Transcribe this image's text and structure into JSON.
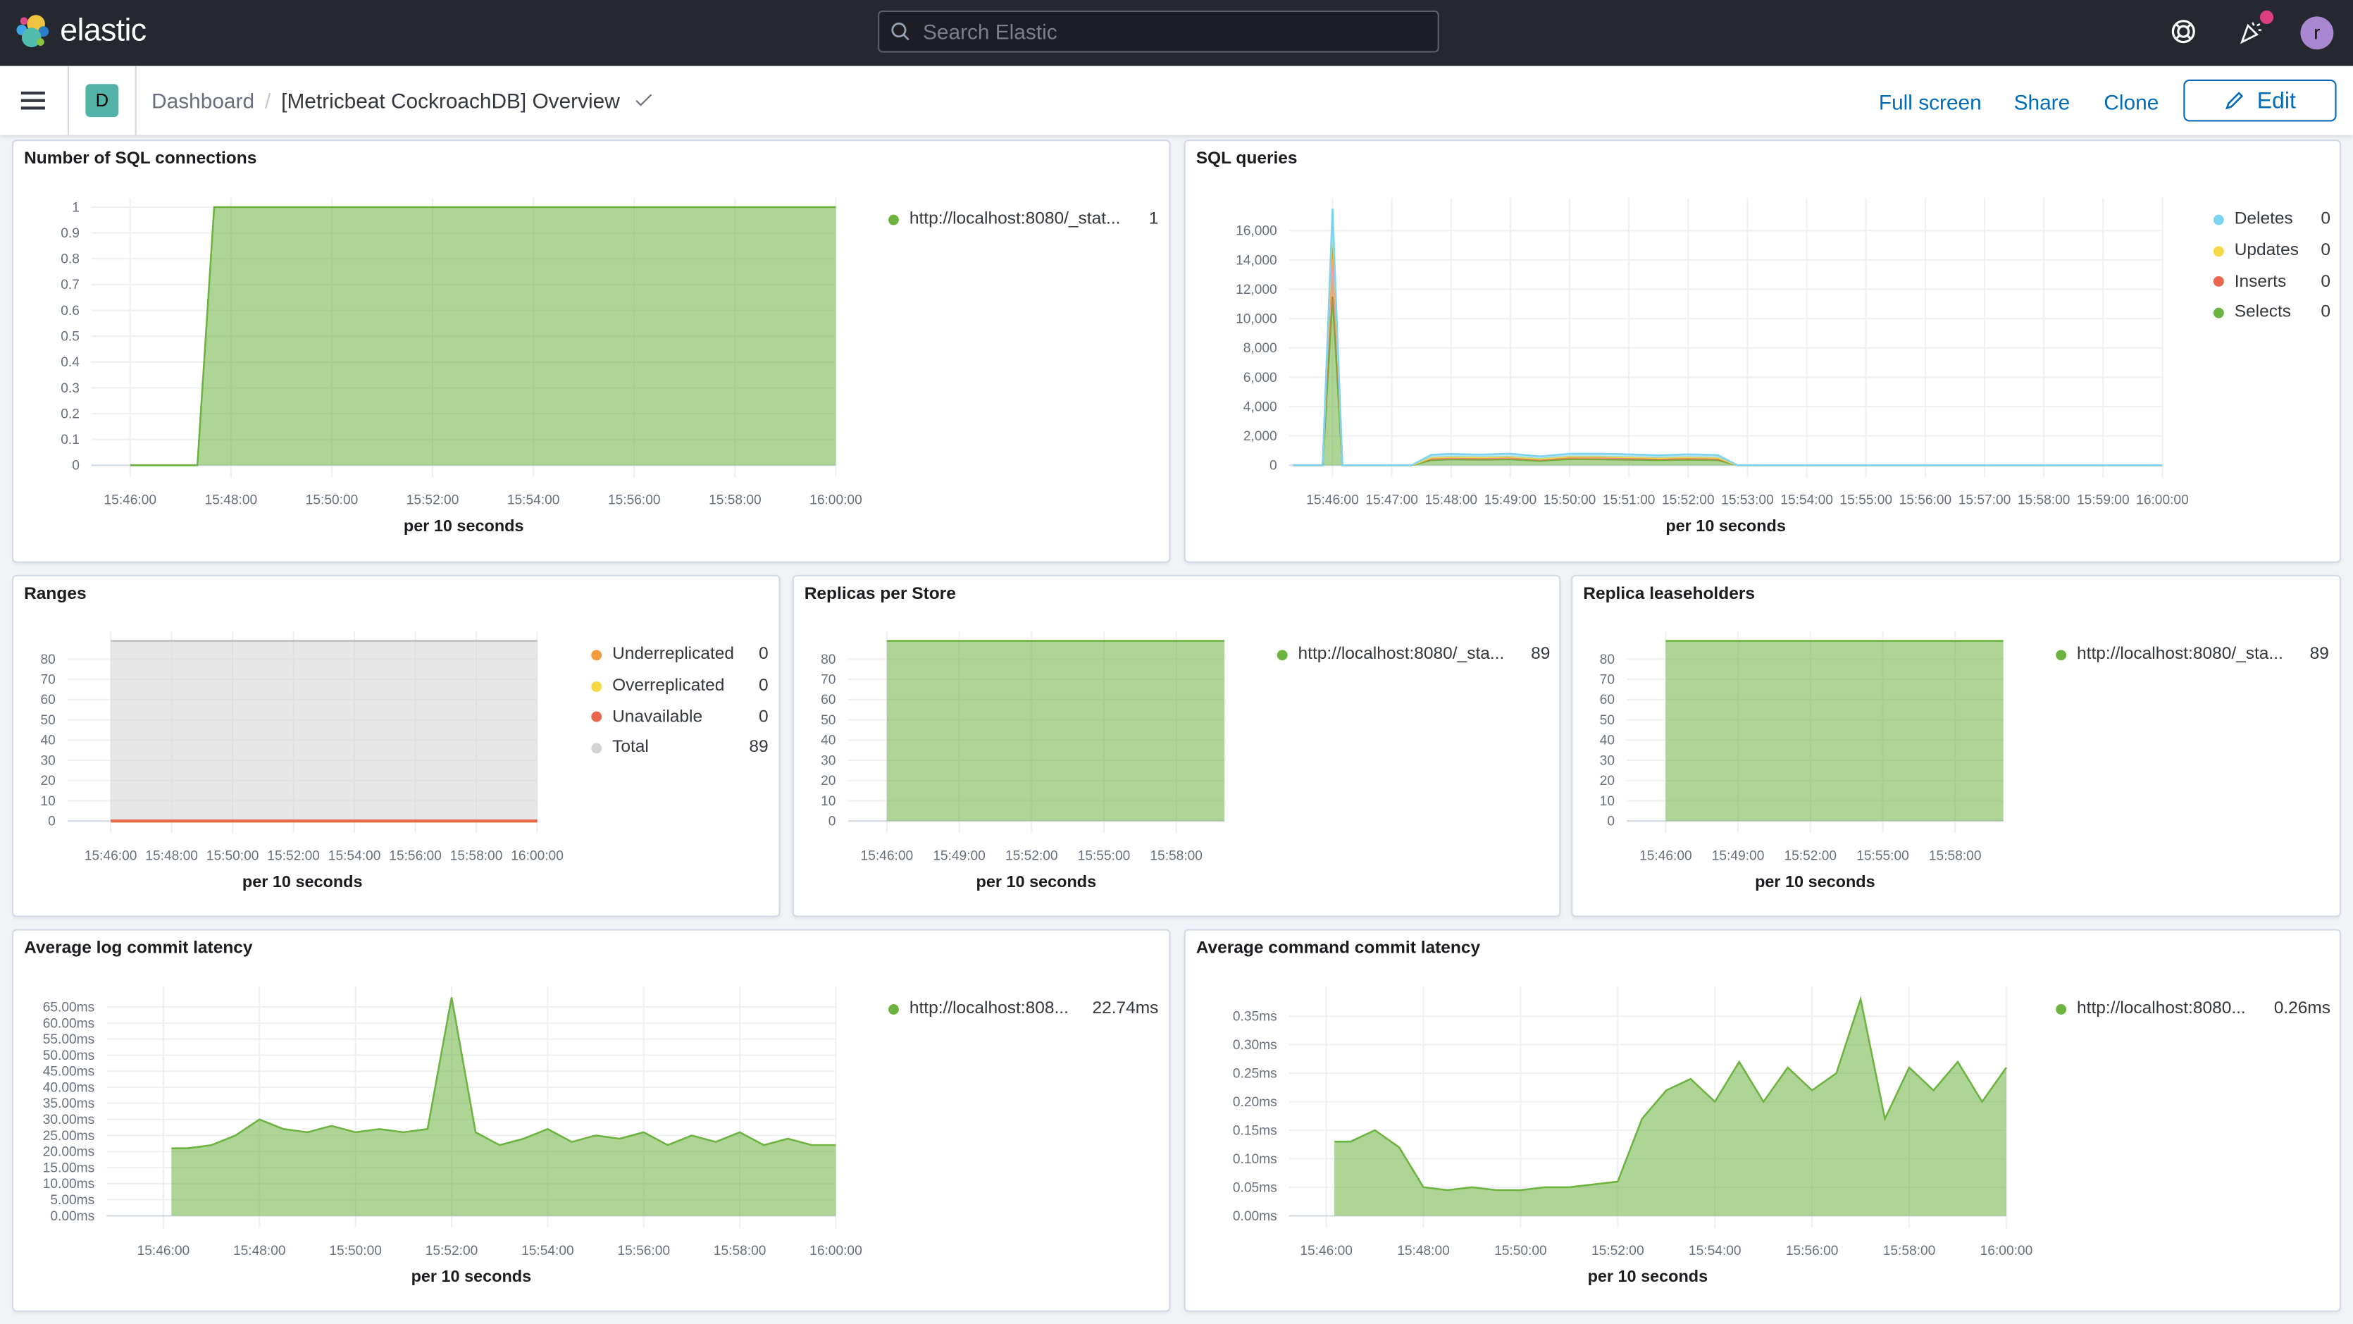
{
  "header": {
    "logo_text": "elastic",
    "search_placeholder": "Search Elastic",
    "icons": [
      "help-icon",
      "newsfeed-icon"
    ],
    "avatar_letter": "r",
    "colors": {
      "topbar": "#25282f",
      "avatar": "#a987d1",
      "notification": "#dd3f7a"
    }
  },
  "navbar": {
    "space_letter": "D",
    "breadcrumb_parent": "Dashboard",
    "breadcrumb_current": "[Metricbeat CockroachDB] Overview",
    "actions": {
      "full_screen": "Full screen",
      "share": "Share",
      "clone": "Clone",
      "edit": "Edit"
    },
    "accent": "#006bb8"
  },
  "panels": [
    {
      "title": "Number of SQL connections"
    },
    {
      "title": "SQL queries"
    },
    {
      "title": "Ranges"
    },
    {
      "title": "Replicas per Store"
    },
    {
      "title": "Replica leaseholders"
    },
    {
      "title": "Average log commit latency"
    },
    {
      "title": "Average command commit latency"
    }
  ],
  "chart_data": [
    {
      "type": "area",
      "stacked": false,
      "xlabel": "per 10 seconds",
      "xlim": [
        "15:45:14",
        "16:00:00"
      ],
      "ylim": [
        0,
        1
      ],
      "xticks": [
        "15:46:00",
        "15:48:00",
        "15:50:00",
        "15:52:00",
        "15:54:00",
        "15:56:00",
        "15:58:00",
        "16:00:00"
      ],
      "yticks": [
        0,
        0.1,
        0.2,
        0.3,
        0.4,
        0.5,
        0.6,
        0.7,
        0.8,
        0.9,
        1
      ],
      "ytick_labels": [
        "0",
        "0.1",
        "0.2",
        "0.3",
        "0.4",
        "0.5",
        "0.6",
        "0.7",
        "0.8",
        "0.9",
        "1"
      ],
      "series": [
        {
          "name": "http://localhost:8080/_stat...",
          "legend_value": "1",
          "color": "#6db33f",
          "x": [
            "15:46:00",
            "15:47:20",
            "15:47:40",
            "16:00:00"
          ],
          "values": [
            0,
            0,
            1,
            1
          ]
        }
      ]
    },
    {
      "type": "area",
      "stacked": true,
      "xlabel": "per 10 seconds",
      "xlim": [
        "15:45:16",
        "16:00:00"
      ],
      "ylim": [
        0,
        17600
      ],
      "xticks": [
        "15:46:00",
        "15:47:00",
        "15:48:00",
        "15:49:00",
        "15:50:00",
        "15:51:00",
        "15:52:00",
        "15:53:00",
        "15:54:00",
        "15:55:00",
        "15:56:00",
        "15:57:00",
        "15:58:00",
        "15:59:00",
        "16:00:00"
      ],
      "yticks": [
        0,
        2000,
        4000,
        6000,
        8000,
        10000,
        12000,
        14000,
        16000
      ],
      "ytick_labels": [
        "0",
        "2,000",
        "4,000",
        "6,000",
        "8,000",
        "10,000",
        "12,000",
        "14,000",
        "16,000"
      ],
      "x": [
        "15:45:20",
        "15:45:50",
        "15:46:00",
        "15:46:10",
        "15:47:20",
        "15:47:40",
        "15:48:00",
        "15:48:30",
        "15:49:00",
        "15:49:30",
        "15:50:00",
        "15:50:30",
        "15:51:00",
        "15:51:30",
        "15:52:00",
        "15:52:30",
        "15:52:50",
        "16:00:00"
      ],
      "legend_order": [
        3,
        2,
        1,
        0
      ],
      "series": [
        {
          "name": "Selects",
          "legend_value": "0",
          "color": "#6db33f",
          "values": [
            0,
            0,
            11500,
            0,
            0,
            350,
            400,
            380,
            400,
            300,
            420,
            400,
            380,
            350,
            380,
            350,
            0,
            0
          ]
        },
        {
          "name": "Inserts",
          "legend_value": "0",
          "color": "#e7664c",
          "values": [
            0,
            0,
            4500,
            0,
            0,
            150,
            150,
            140,
            160,
            120,
            150,
            160,
            150,
            130,
            150,
            140,
            0,
            0
          ]
        },
        {
          "name": "Updates",
          "legend_value": "0",
          "color": "#f5d843",
          "values": [
            0,
            0,
            500,
            0,
            0,
            20,
            20,
            20,
            20,
            20,
            20,
            20,
            20,
            20,
            20,
            20,
            0,
            0
          ]
        },
        {
          "name": "Deletes",
          "legend_value": "0",
          "color": "#7dd3f2",
          "values": [
            0,
            0,
            1000,
            0,
            0,
            200,
            200,
            190,
            210,
            170,
            200,
            210,
            200,
            180,
            200,
            190,
            0,
            0
          ]
        }
      ]
    },
    {
      "type": "area",
      "stacked": false,
      "xlabel": "per 10 seconds",
      "xlim": [
        "15:44:35",
        "16:00:00"
      ],
      "ylim": [
        0,
        89
      ],
      "xticks": [
        "15:46:00",
        "15:48:00",
        "15:50:00",
        "15:52:00",
        "15:54:00",
        "15:56:00",
        "15:58:00",
        "16:00:00"
      ],
      "yticks": [
        0,
        10,
        20,
        30,
        40,
        50,
        60,
        70,
        80
      ],
      "ytick_labels": [
        "0",
        "10",
        "20",
        "30",
        "40",
        "50",
        "60",
        "70",
        "80"
      ],
      "series": [
        {
          "name": "Underreplicated",
          "legend_value": "0",
          "color": "#f29a3c",
          "x": [
            "15:46:00",
            "16:00:00"
          ],
          "values": [
            0,
            0
          ]
        },
        {
          "name": "Overreplicated",
          "legend_value": "0",
          "color": "#f5d843",
          "x": [
            "15:46:00",
            "16:00:00"
          ],
          "values": [
            0,
            0
          ]
        },
        {
          "name": "Unavailable",
          "legend_value": "0",
          "color": "#e7664c",
          "x": [
            "15:46:00",
            "16:00:00"
          ],
          "values": [
            0,
            0
          ]
        },
        {
          "name": "Total",
          "legend_value": "89",
          "color": "#d3d3d3",
          "x": [
            "15:46:00",
            "16:00:00"
          ],
          "values": [
            89,
            89
          ]
        }
      ],
      "draw_order": [
        3,
        0,
        1,
        2
      ]
    },
    {
      "type": "area",
      "stacked": false,
      "xlabel": "per 10 seconds",
      "xlim": [
        "15:44:23",
        "16:00:00"
      ],
      "ylim": [
        0,
        89
      ],
      "xticks": [
        "15:46:00",
        "15:49:00",
        "15:52:00",
        "15:55:00",
        "15:58:00"
      ],
      "yticks": [
        0,
        10,
        20,
        30,
        40,
        50,
        60,
        70,
        80
      ],
      "ytick_labels": [
        "0",
        "10",
        "20",
        "30",
        "40",
        "50",
        "60",
        "70",
        "80"
      ],
      "series": [
        {
          "name": "http://localhost:8080/_sta...",
          "legend_value": "89",
          "color": "#6db33f",
          "x": [
            "15:46:00",
            "16:00:00"
          ],
          "values": [
            89,
            89
          ]
        }
      ]
    },
    {
      "type": "area",
      "stacked": false,
      "xlabel": "per 10 seconds",
      "xlim": [
        "15:44:23",
        "16:00:00"
      ],
      "ylim": [
        0,
        89
      ],
      "xticks": [
        "15:46:00",
        "15:49:00",
        "15:52:00",
        "15:55:00",
        "15:58:00"
      ],
      "yticks": [
        0,
        10,
        20,
        30,
        40,
        50,
        60,
        70,
        80
      ],
      "ytick_labels": [
        "0",
        "10",
        "20",
        "30",
        "40",
        "50",
        "60",
        "70",
        "80"
      ],
      "series": [
        {
          "name": "http://localhost:8080/_sta...",
          "legend_value": "89",
          "color": "#6db33f",
          "x": [
            "15:46:00",
            "16:00:00"
          ],
          "values": [
            89,
            89
          ]
        }
      ]
    },
    {
      "type": "area",
      "stacked": false,
      "xlabel": "per 10 seconds",
      "xlim": [
        "15:44:49",
        "16:00:00"
      ],
      "ylim": [
        0,
        68.7
      ],
      "xticks": [
        "15:46:00",
        "15:48:00",
        "15:50:00",
        "15:52:00",
        "15:54:00",
        "15:56:00",
        "15:58:00",
        "16:00:00"
      ],
      "yticks": [
        0,
        5,
        10,
        15,
        20,
        25,
        30,
        35,
        40,
        45,
        50,
        55,
        60,
        65
      ],
      "ytick_labels": [
        "0.00ms",
        "5.00ms",
        "10.00ms",
        "15.00ms",
        "20.00ms",
        "25.00ms",
        "30.00ms",
        "35.00ms",
        "40.00ms",
        "45.00ms",
        "50.00ms",
        "55.00ms",
        "60.00ms",
        "65.00ms"
      ],
      "x": [
        "15:46:10",
        "15:46:30",
        "15:47:00",
        "15:47:30",
        "15:48:00",
        "15:48:30",
        "15:49:00",
        "15:49:30",
        "15:50:00",
        "15:50:30",
        "15:51:00",
        "15:51:30",
        "15:52:00",
        "15:52:30",
        "15:53:00",
        "15:53:30",
        "15:54:00",
        "15:54:30",
        "15:55:00",
        "15:55:30",
        "15:56:00",
        "15:56:30",
        "15:57:00",
        "15:57:30",
        "15:58:00",
        "15:58:30",
        "15:59:00",
        "15:59:30",
        "16:00:00"
      ],
      "series": [
        {
          "name": "http://localhost:808...",
          "legend_value": "22.74ms",
          "color": "#6db33f",
          "values": [
            21,
            21,
            22,
            25,
            30,
            27,
            26,
            28,
            26,
            27,
            26,
            27,
            68,
            26,
            22,
            24,
            27,
            23,
            25,
            24,
            26,
            22,
            25,
            23,
            26,
            22,
            24,
            22,
            22
          ]
        }
      ]
    },
    {
      "type": "area",
      "stacked": false,
      "xlabel": "per 10 seconds",
      "xlim": [
        "15:45:14",
        "16:00:00"
      ],
      "ylim": [
        0,
        0.387
      ],
      "xticks": [
        "15:46:00",
        "15:48:00",
        "15:50:00",
        "15:52:00",
        "15:54:00",
        "15:56:00",
        "15:58:00",
        "16:00:00"
      ],
      "yticks": [
        0,
        0.05,
        0.1,
        0.15,
        0.2,
        0.25,
        0.3,
        0.35
      ],
      "ytick_labels": [
        "0.00ms",
        "0.05ms",
        "0.10ms",
        "0.15ms",
        "0.20ms",
        "0.25ms",
        "0.30ms",
        "0.35ms"
      ],
      "x": [
        "15:46:10",
        "15:46:30",
        "15:47:00",
        "15:47:30",
        "15:48:00",
        "15:48:30",
        "15:49:00",
        "15:49:30",
        "15:50:00",
        "15:50:30",
        "15:51:00",
        "15:51:30",
        "15:52:00",
        "15:52:30",
        "15:53:00",
        "15:53:30",
        "15:54:00",
        "15:54:30",
        "15:55:00",
        "15:55:30",
        "15:56:00",
        "15:56:30",
        "15:57:00",
        "15:57:30",
        "15:58:00",
        "15:58:30",
        "15:59:00",
        "15:59:30",
        "16:00:00"
      ],
      "series": [
        {
          "name": "http://localhost:8080...",
          "legend_value": "0.26ms",
          "color": "#6db33f",
          "values": [
            0.13,
            0.13,
            0.15,
            0.12,
            0.05,
            0.045,
            0.05,
            0.045,
            0.045,
            0.05,
            0.05,
            0.055,
            0.06,
            0.17,
            0.22,
            0.24,
            0.2,
            0.27,
            0.2,
            0.26,
            0.22,
            0.25,
            0.38,
            0.17,
            0.26,
            0.22,
            0.27,
            0.2,
            0.26
          ]
        }
      ]
    }
  ]
}
